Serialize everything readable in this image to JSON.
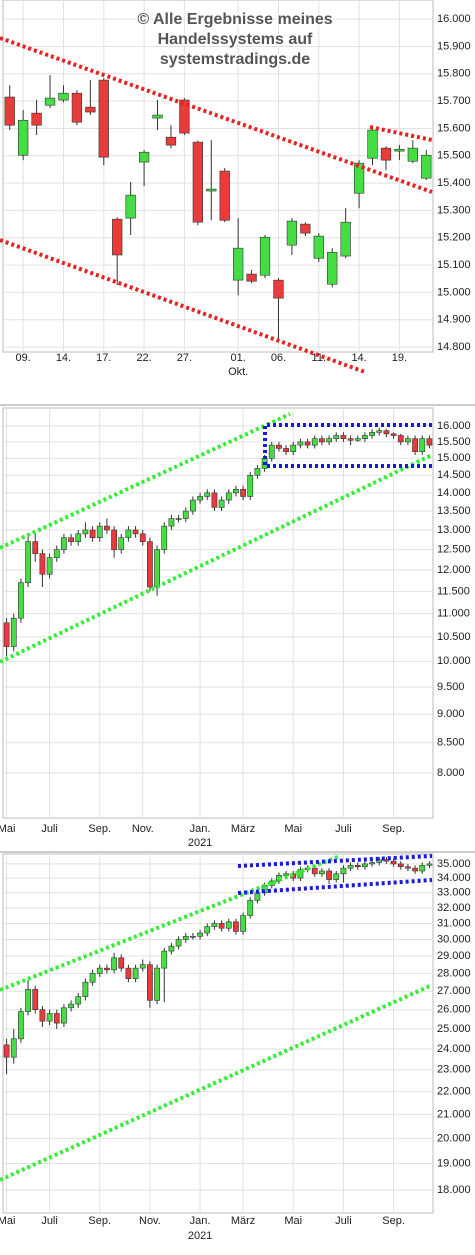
{
  "watermark": [
    "© Alle Ergebnisse meines",
    "Handelssystems auf",
    "systemstradings.de"
  ],
  "chart_data": [
    {
      "type": "candlestick",
      "grid": true,
      "log_scale": false,
      "up_color": "#44dd44",
      "down_color": "#e83c3c",
      "categories": [
        null,
        "09.",
        null,
        null,
        "14.",
        null,
        null,
        "17.",
        null,
        null,
        "22.",
        null,
        null,
        "27.",
        null,
        null,
        null,
        "01.",
        null,
        null,
        "06.",
        null,
        null,
        "11.",
        null,
        null,
        "14.",
        null,
        null,
        "19.",
        null,
        null
      ],
      "category_groups": [
        null,
        null,
        null,
        null,
        null,
        null,
        null,
        null,
        null,
        null,
        null,
        null,
        null,
        null,
        null,
        null,
        null,
        "Okt.",
        null,
        null,
        null,
        null,
        null,
        null,
        null,
        null,
        null,
        null,
        null,
        null,
        null,
        null
      ],
      "open": [
        15715,
        15502,
        15656,
        15685,
        15704,
        15729,
        15678,
        15777,
        15268,
        15272,
        15477,
        15638,
        15568,
        15704,
        15550,
        15371,
        15444,
        15045,
        15067,
        15063,
        15045,
        15173,
        15250,
        15125,
        15030,
        15133,
        15363,
        15491,
        15528,
        15517,
        15480,
        15418
      ],
      "high": [
        15758,
        15667,
        15704,
        15795,
        15758,
        15740,
        15777,
        15784,
        15275,
        15404,
        15521,
        15704,
        15612,
        15711,
        15555,
        15557,
        15455,
        15272,
        15082,
        15210,
        15052,
        15272,
        15257,
        15217,
        15162,
        15308,
        15484,
        15601,
        15535,
        15539,
        15557,
        15521
      ],
      "low": [
        15594,
        15484,
        15576,
        15674,
        15696,
        15612,
        15649,
        15466,
        15027,
        15210,
        15389,
        15594,
        15528,
        15576,
        15246,
        15264,
        15257,
        14990,
        15034,
        15052,
        14825,
        15137,
        15206,
        15111,
        15019,
        15125,
        15308,
        15466,
        15447,
        15484,
        15473,
        15411
      ],
      "close": [
        15612,
        15630,
        15612,
        15711,
        15729,
        15623,
        15660,
        15495,
        15137,
        15356,
        15513,
        15649,
        15539,
        15583,
        15257,
        15378,
        15264,
        15162,
        15041,
        15202,
        14979,
        15261,
        15217,
        15206,
        15147,
        15257,
        15473,
        15594,
        15484,
        15524,
        15528,
        15502
      ],
      "ylim": [
        14782,
        16070
      ],
      "yticks": [
        {
          "value": 16000,
          "label": "16.000"
        },
        {
          "value": 15900,
          "label": "15.900"
        },
        {
          "value": 15800,
          "label": "15.800"
        },
        {
          "value": 15700,
          "label": "15.700"
        },
        {
          "value": 15600,
          "label": "15.600"
        },
        {
          "value": 15500,
          "label": "15.500"
        },
        {
          "value": 15400,
          "label": "15.400"
        },
        {
          "value": 15300,
          "label": "15.300"
        },
        {
          "value": 15200,
          "label": "15.200"
        },
        {
          "value": 15100,
          "label": "15.100"
        },
        {
          "value": 15000,
          "label": "15.000"
        },
        {
          "value": 14900,
          "label": "14.900"
        },
        {
          "value": 14800,
          "label": "14.800"
        }
      ]
    },
    {
      "type": "candlestick",
      "grid": true,
      "log_scale": true,
      "up_color": "#44dd44",
      "down_color": "#e83c3c",
      "categories": [
        "Mai",
        null,
        null,
        null,
        null,
        null,
        "Juli",
        null,
        null,
        null,
        null,
        null,
        null,
        "Sep.",
        null,
        null,
        null,
        null,
        null,
        "Nov.",
        null,
        null,
        null,
        null,
        null,
        null,
        null,
        "Jan.",
        null,
        null,
        null,
        null,
        null,
        "März",
        null,
        null,
        null,
        null,
        null,
        null,
        "Mai",
        null,
        null,
        null,
        null,
        null,
        null,
        "Juli",
        null,
        null,
        null,
        null,
        null,
        null,
        "Sep.",
        null,
        null,
        null,
        null,
        null
      ],
      "category_groups": [
        null,
        null,
        null,
        null,
        null,
        null,
        null,
        null,
        null,
        null,
        null,
        null,
        null,
        null,
        null,
        null,
        null,
        null,
        null,
        null,
        null,
        null,
        null,
        null,
        null,
        null,
        null,
        "2021",
        null,
        null,
        null,
        null,
        null,
        null,
        null,
        null,
        null,
        null,
        null,
        null,
        null,
        null,
        null,
        null,
        null,
        null,
        null,
        null,
        null,
        null,
        null,
        null,
        null,
        null,
        null,
        null,
        null,
        null,
        null,
        null
      ],
      "open": [
        10800,
        10300,
        10900,
        11700,
        12700,
        12400,
        11900,
        12300,
        12500,
        12800,
        12700,
        12900,
        13000,
        12800,
        13100,
        13000,
        12500,
        12800,
        13000,
        12900,
        12700,
        11600,
        12500,
        13100,
        13300,
        13300,
        13500,
        13800,
        13900,
        14000,
        13600,
        13800,
        14000,
        14100,
        13900,
        14500,
        14700,
        15000,
        15400,
        15300,
        15200,
        15400,
        15500,
        15400,
        15600,
        15500,
        15600,
        15700,
        15600,
        15550,
        15600,
        15700,
        15800,
        15850,
        15750,
        15700,
        15500,
        15600,
        15200,
        15600
      ],
      "high": [
        10900,
        11000,
        11800,
        12900,
        12900,
        12500,
        12400,
        12600,
        12900,
        12900,
        13000,
        13200,
        13100,
        13200,
        13300,
        13100,
        12900,
        13100,
        13100,
        13000,
        12800,
        12600,
        13200,
        13400,
        13400,
        13600,
        13900,
        14000,
        14100,
        14100,
        13900,
        14100,
        14200,
        14200,
        14600,
        14800,
        15100,
        15500,
        15500,
        15400,
        15500,
        15600,
        15600,
        15700,
        15700,
        15700,
        15800,
        15800,
        15700,
        15700,
        15800,
        15900,
        15950,
        15900,
        15800,
        15750,
        15700,
        15700,
        15700,
        15700
      ],
      "low": [
        10100,
        10200,
        10800,
        11600,
        12200,
        11600,
        11800,
        12200,
        12400,
        12600,
        12600,
        12800,
        12700,
        12700,
        12900,
        12300,
        12400,
        12700,
        12800,
        12600,
        11500,
        11400,
        12400,
        13000,
        13200,
        13200,
        13400,
        13700,
        13800,
        13500,
        13500,
        13700,
        13900,
        13800,
        13800,
        14400,
        14600,
        14900,
        15200,
        15100,
        15100,
        15300,
        15300,
        15300,
        15400,
        15400,
        15500,
        15500,
        15400,
        15500,
        15500,
        15600,
        15700,
        15650,
        15600,
        15400,
        15400,
        15100,
        15100,
        15300
      ],
      "close": [
        10300,
        10900,
        11700,
        12700,
        12400,
        11900,
        12300,
        12500,
        12800,
        12700,
        12900,
        13000,
        12800,
        13100,
        13000,
        12500,
        12800,
        13000,
        12900,
        12700,
        11600,
        12500,
        13100,
        13300,
        13300,
        13500,
        13800,
        13900,
        14000,
        13600,
        13800,
        14000,
        14100,
        13900,
        14500,
        14700,
        15000,
        15400,
        15300,
        15200,
        15400,
        15500,
        15400,
        15600,
        15500,
        15600,
        15700,
        15600,
        15550,
        15600,
        15700,
        15800,
        15850,
        15750,
        15700,
        15500,
        15600,
        15200,
        15600,
        15400
      ],
      "ylim": [
        7313,
        16586
      ],
      "yticks": [
        {
          "value": 16000,
          "label": "16.000"
        },
        {
          "value": 15500,
          "label": "15.500"
        },
        {
          "value": 15000,
          "label": "15.000"
        },
        {
          "value": 14500,
          "label": "14.500"
        },
        {
          "value": 14000,
          "label": "14.000"
        },
        {
          "value": 13500,
          "label": "13.500"
        },
        {
          "value": 13000,
          "label": "13.000"
        },
        {
          "value": 12500,
          "label": "12.500"
        },
        {
          "value": 12000,
          "label": "12.000"
        },
        {
          "value": 11500,
          "label": "11.500"
        },
        {
          "value": 11000,
          "label": "11.000"
        },
        {
          "value": 10500,
          "label": "10.500"
        },
        {
          "value": 10000,
          "label": "10.000"
        },
        {
          "value": 9500,
          "label": "9.500"
        },
        {
          "value": 9000,
          "label": "9.000"
        },
        {
          "value": 8500,
          "label": "8.500"
        },
        {
          "value": 8000,
          "label": "8.000"
        }
      ]
    },
    {
      "type": "candlestick",
      "grid": true,
      "log_scale": true,
      "up_color": "#44dd44",
      "down_color": "#e83c3c",
      "categories": [
        "Mai",
        null,
        null,
        null,
        null,
        null,
        "Juli",
        null,
        null,
        null,
        null,
        null,
        null,
        "Sep.",
        null,
        null,
        null,
        null,
        null,
        null,
        "Nov.",
        null,
        null,
        null,
        null,
        null,
        null,
        "Jan.",
        null,
        null,
        null,
        null,
        null,
        "März",
        null,
        null,
        null,
        null,
        null,
        null,
        "Mai",
        null,
        null,
        null,
        null,
        null,
        null,
        "Juli",
        null,
        null,
        null,
        null,
        null,
        null,
        "Sep.",
        null,
        null,
        null,
        null,
        null
      ],
      "category_groups": [
        null,
        null,
        null,
        null,
        null,
        null,
        null,
        null,
        null,
        null,
        null,
        null,
        null,
        null,
        null,
        null,
        null,
        null,
        null,
        null,
        null,
        null,
        null,
        null,
        null,
        null,
        null,
        "2021",
        null,
        null,
        null,
        null,
        null,
        null,
        null,
        null,
        null,
        null,
        null,
        null,
        null,
        null,
        null,
        null,
        null,
        null,
        null,
        null,
        null,
        null,
        null,
        null,
        null,
        null,
        null,
        null,
        null,
        null,
        null,
        null
      ],
      "open": [
        24200,
        23600,
        24500,
        25900,
        27100,
        26000,
        25400,
        25800,
        25300,
        26100,
        26300,
        26700,
        27500,
        28000,
        28300,
        28200,
        28900,
        28300,
        27700,
        28300,
        28500,
        26500,
        28300,
        29300,
        29600,
        30000,
        30200,
        30200,
        30400,
        30800,
        31000,
        30700,
        31100,
        30500,
        31500,
        32500,
        33000,
        33500,
        33800,
        34200,
        34300,
        34000,
        34600,
        34700,
        34300,
        34500,
        33900,
        34300,
        34700,
        34900,
        34800,
        35000,
        35100,
        35300,
        35200,
        35000,
        34800,
        34700,
        34500,
        34900
      ],
      "high": [
        24500,
        25000,
        26100,
        27600,
        27300,
        26200,
        26000,
        26000,
        26300,
        26500,
        26900,
        27700,
        28200,
        28500,
        28500,
        29200,
        29100,
        28500,
        28500,
        28800,
        28700,
        28500,
        29500,
        29800,
        30200,
        30400,
        30400,
        30600,
        31000,
        31200,
        31200,
        31300,
        31300,
        31700,
        32700,
        33200,
        33700,
        34000,
        34400,
        34500,
        34500,
        34800,
        34900,
        34900,
        34700,
        34700,
        34500,
        34900,
        35100,
        35100,
        35200,
        35300,
        35500,
        35500,
        35400,
        35200,
        35000,
        34900,
        35100,
        35200
      ],
      "low": [
        22800,
        23300,
        24300,
        25700,
        25800,
        25100,
        25200,
        25000,
        25100,
        25900,
        26100,
        26500,
        27300,
        27800,
        28000,
        28000,
        28100,
        27500,
        27500,
        28100,
        26100,
        26300,
        26400,
        29100,
        29400,
        29800,
        30000,
        30000,
        30200,
        30600,
        30500,
        30500,
        30300,
        30300,
        31300,
        32300,
        32800,
        33300,
        33600,
        34000,
        33800,
        33800,
        34400,
        34100,
        34100,
        33600,
        33700,
        33700,
        34500,
        34600,
        34600,
        34800,
        34900,
        35000,
        34800,
        34600,
        34500,
        34300,
        34300,
        34700
      ],
      "close": [
        23600,
        24500,
        25900,
        27100,
        26000,
        25400,
        25800,
        25300,
        26100,
        26300,
        26700,
        27500,
        28000,
        28300,
        28200,
        28900,
        28300,
        27700,
        28300,
        28500,
        26500,
        28300,
        29300,
        29600,
        30000,
        30200,
        30200,
        30400,
        30800,
        31000,
        30700,
        31100,
        30500,
        31500,
        32500,
        33000,
        33500,
        33800,
        34200,
        34300,
        34000,
        34600,
        34700,
        34300,
        34500,
        33900,
        34300,
        34700,
        34900,
        34800,
        35000,
        35100,
        35300,
        35200,
        35000,
        34800,
        34700,
        34500,
        34900,
        35000
      ],
      "ylim": [
        17176,
        35716
      ],
      "yticks": [
        {
          "value": 35000,
          "label": "35.000"
        },
        {
          "value": 34000,
          "label": "34.000"
        },
        {
          "value": 33000,
          "label": "33.000"
        },
        {
          "value": 32000,
          "label": "32.000"
        },
        {
          "value": 31000,
          "label": "31.000"
        },
        {
          "value": 30000,
          "label": "30.000"
        },
        {
          "value": 29000,
          "label": "29.000"
        },
        {
          "value": 28000,
          "label": "28.000"
        },
        {
          "value": 27000,
          "label": "27.000"
        },
        {
          "value": 26000,
          "label": "26.000"
        },
        {
          "value": 25000,
          "label": "25.000"
        },
        {
          "value": 24000,
          "label": "24.000"
        },
        {
          "value": 23000,
          "label": "23.000"
        },
        {
          "value": 22000,
          "label": "22.000"
        },
        {
          "value": 21000,
          "label": "21.000"
        },
        {
          "value": 20000,
          "label": "20.000"
        },
        {
          "value": 19000,
          "label": "19.000"
        },
        {
          "value": 18000,
          "label": "18.000"
        }
      ]
    }
  ]
}
